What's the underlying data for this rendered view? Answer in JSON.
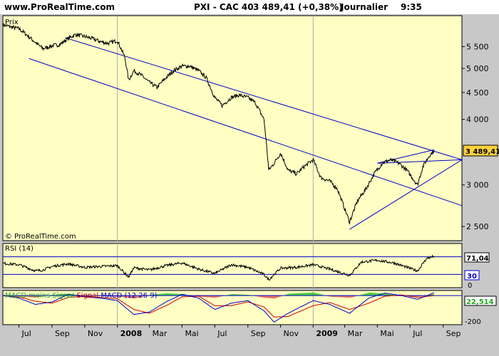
{
  "header": {
    "site": "www.ProRealTime.com",
    "instrument": "PXI - CAC 40",
    "last_quote": "3 489,41 (+0,38%)",
    "period": "Journalier",
    "time": "9:35"
  },
  "colors": {
    "panel_bg": "#ffffc4",
    "frame_bg": "#c8c8c8",
    "price_line": "#000000",
    "channel_line": "#0000cc",
    "rsi_line": "#000000",
    "macd_line": "#0000cc",
    "signal_line": "#cc0000",
    "histogram_positive": "#22bb22",
    "histogram_negative": "#dd5555",
    "price_label_bg": "#ffd23c"
  },
  "chart_data": [
    {
      "type": "line",
      "title": "PXI - CAC 40",
      "panel_label": "Prix",
      "watermark": "© ProRealTime.com",
      "scale": "log",
      "ylim": [
        2350,
        6300
      ],
      "y_ticks": [
        2500,
        3000,
        4000,
        4500,
        5000,
        5500
      ],
      "y_tick_labels": [
        "2 500",
        "3 000",
        "4 000",
        "4 500",
        "5 000",
        "5 500"
      ],
      "last_price_label": "3 489,41",
      "x_tick_labels": [
        "Jul",
        "Sep",
        "Nov",
        "2008",
        "Mar",
        "Mai",
        "Jul",
        "Sep",
        "Nov",
        "2009",
        "Mar",
        "Mai",
        "Jul",
        "Sep"
      ],
      "x_ticks": [
        "2007-07",
        "2007-09",
        "2007-11",
        "2008-01",
        "2008-03",
        "2008-05",
        "2008-07",
        "2008-09",
        "2008-11",
        "2009-01",
        "2009-03",
        "2009-05",
        "2009-07",
        "2009-09"
      ],
      "x_range": [
        "2007-06-01",
        "2009-10-06"
      ],
      "series": [
        {
          "points": [
            [
              "2007-06-01",
              6050
            ],
            [
              "2007-06-15",
              6000
            ],
            [
              "2007-07-01",
              5950
            ],
            [
              "2007-07-15",
              5800
            ],
            [
              "2007-08-01",
              5600
            ],
            [
              "2007-08-15",
              5450
            ],
            [
              "2007-09-01",
              5520
            ],
            [
              "2007-09-15",
              5550
            ],
            [
              "2007-10-01",
              5700
            ],
            [
              "2007-10-15",
              5800
            ],
            [
              "2007-11-01",
              5750
            ],
            [
              "2007-11-15",
              5700
            ],
            [
              "2007-12-01",
              5620
            ],
            [
              "2007-12-15",
              5580
            ],
            [
              "2008-01-01",
              5650
            ],
            [
              "2008-01-15",
              5250
            ],
            [
              "2008-01-22",
              4750
            ],
            [
              "2008-02-01",
              4950
            ],
            [
              "2008-02-15",
              4850
            ],
            [
              "2008-03-01",
              4700
            ],
            [
              "2008-03-15",
              4600
            ],
            [
              "2008-04-01",
              4800
            ],
            [
              "2008-04-15",
              4950
            ],
            [
              "2008-05-01",
              5050
            ],
            [
              "2008-05-15",
              5050
            ],
            [
              "2008-06-01",
              4950
            ],
            [
              "2008-06-15",
              4800
            ],
            [
              "2008-07-01",
              4400
            ],
            [
              "2008-07-15",
              4250
            ],
            [
              "2008-08-01",
              4400
            ],
            [
              "2008-08-15",
              4450
            ],
            [
              "2008-09-01",
              4400
            ],
            [
              "2008-09-15",
              4300
            ],
            [
              "2008-10-01",
              4000
            ],
            [
              "2008-10-10",
              3200
            ],
            [
              "2008-10-20",
              3300
            ],
            [
              "2008-11-01",
              3450
            ],
            [
              "2008-11-15",
              3200
            ],
            [
              "2008-12-01",
              3150
            ],
            [
              "2008-12-15",
              3250
            ],
            [
              "2009-01-01",
              3350
            ],
            [
              "2009-01-15",
              3100
            ],
            [
              "2009-02-01",
              3050
            ],
            [
              "2009-02-15",
              2950
            ],
            [
              "2009-03-01",
              2700
            ],
            [
              "2009-03-10",
              2550
            ],
            [
              "2009-03-25",
              2800
            ],
            [
              "2009-04-10",
              2950
            ],
            [
              "2009-04-25",
              3150
            ],
            [
              "2009-05-10",
              3300
            ],
            [
              "2009-05-25",
              3350
            ],
            [
              "2009-06-10",
              3300
            ],
            [
              "2009-06-25",
              3200
            ],
            [
              "2009-07-10",
              3050
            ],
            [
              "2009-07-15",
              3000
            ],
            [
              "2009-07-25",
              3250
            ],
            [
              "2009-08-05",
              3400
            ],
            [
              "2009-08-15",
              3489.41
            ]
          ]
        }
      ],
      "trendlines": [
        {
          "name": "channel-top",
          "from": [
            "2007-09-25",
            5720
          ],
          "to": [
            "2009-10-06",
            3350
          ]
        },
        {
          "name": "channel-bottom",
          "from": [
            "2007-07-20",
            5220
          ],
          "to": [
            "2009-10-06",
            2740
          ]
        },
        {
          "name": "wedge-upper",
          "from": [
            "2009-05-01",
            3300
          ],
          "to": [
            "2009-10-06",
            3350
          ]
        },
        {
          "name": "wedge-lower",
          "from": [
            "2009-03-10",
            2470
          ],
          "to": [
            "2009-10-06",
            3350
          ]
        },
        {
          "name": "wedge-top-line",
          "from": [
            "2009-05-01",
            3300
          ],
          "to": [
            "2009-08-15",
            3500
          ]
        }
      ]
    },
    {
      "type": "line",
      "title": "RSI (14)",
      "ylim": [
        0,
        100
      ],
      "levels": [
        70,
        30
      ],
      "y_tick_labels": [
        "0"
      ],
      "last_value_label": "71,04",
      "level_label": "30",
      "x_range": [
        "2007-06-01",
        "2009-10-06"
      ],
      "series": [
        {
          "points": [
            [
              "2007-06-01",
              55
            ],
            [
              "2007-07-01",
              52
            ],
            [
              "2007-08-01",
              38
            ],
            [
              "2007-08-15",
              40
            ],
            [
              "2007-09-01",
              48
            ],
            [
              "2007-10-01",
              54
            ],
            [
              "2007-11-01",
              46
            ],
            [
              "2007-12-01",
              48
            ],
            [
              "2008-01-01",
              50
            ],
            [
              "2008-01-22",
              24
            ],
            [
              "2008-02-01",
              45
            ],
            [
              "2008-03-01",
              40
            ],
            [
              "2008-04-01",
              50
            ],
            [
              "2008-05-01",
              56
            ],
            [
              "2008-06-01",
              42
            ],
            [
              "2008-07-01",
              32
            ],
            [
              "2008-08-01",
              52
            ],
            [
              "2008-09-01",
              46
            ],
            [
              "2008-10-01",
              30
            ],
            [
              "2008-10-10",
              18
            ],
            [
              "2008-11-01",
              44
            ],
            [
              "2008-12-01",
              46
            ],
            [
              "2009-01-01",
              52
            ],
            [
              "2009-02-01",
              42
            ],
            [
              "2009-03-10",
              28
            ],
            [
              "2009-04-01",
              58
            ],
            [
              "2009-05-01",
              62
            ],
            [
              "2009-06-01",
              56
            ],
            [
              "2009-07-15",
              38
            ],
            [
              "2009-08-01",
              66
            ],
            [
              "2009-08-15",
              71.04
            ]
          ]
        }
      ]
    },
    {
      "type": "line",
      "title": "MACD moins Signal",
      "series_labels": [
        "MACD moins Signal",
        "Signal",
        "MACD (12 26 9)"
      ],
      "ylim": [
        -230,
        40
      ],
      "y_tick_labels": [
        "-200"
      ],
      "zero_line": 0,
      "last_value_label": "22,514",
      "x_range": [
        "2007-06-01",
        "2009-10-06"
      ],
      "series": [
        {
          "points": [
            [
              "2007-06-01",
              0
            ],
            [
              "2007-07-01",
              -20
            ],
            [
              "2007-08-01",
              -70
            ],
            [
              "2007-09-01",
              -50
            ],
            [
              "2007-10-01",
              10
            ],
            [
              "2007-11-01",
              -10
            ],
            [
              "2007-12-01",
              -20
            ],
            [
              "2008-01-01",
              -40
            ],
            [
              "2008-02-01",
              -150
            ],
            [
              "2008-03-01",
              -130
            ],
            [
              "2008-04-01",
              -50
            ],
            [
              "2008-05-01",
              10
            ],
            [
              "2008-06-01",
              -20
            ],
            [
              "2008-07-01",
              -110
            ],
            [
              "2008-08-01",
              -60
            ],
            [
              "2008-09-01",
              -40
            ],
            [
              "2008-10-01",
              -120
            ],
            [
              "2008-10-20",
              -210
            ],
            [
              "2008-11-15",
              -140
            ],
            [
              "2009-01-01",
              -40
            ],
            [
              "2009-02-01",
              -70
            ],
            [
              "2009-03-10",
              -140
            ],
            [
              "2009-04-15",
              -20
            ],
            [
              "2009-05-15",
              20
            ],
            [
              "2009-06-15",
              0
            ],
            [
              "2009-07-15",
              -30
            ],
            [
              "2009-08-15",
              22.5
            ]
          ]
        },
        {
          "points": [
            [
              "2007-06-01",
              0
            ],
            [
              "2007-07-01",
              -10
            ],
            [
              "2007-08-01",
              -45
            ],
            [
              "2007-09-01",
              -60
            ],
            [
              "2007-10-01",
              -15
            ],
            [
              "2007-11-01",
              -5
            ],
            [
              "2007-12-01",
              -15
            ],
            [
              "2008-01-01",
              -25
            ],
            [
              "2008-02-01",
              -110
            ],
            [
              "2008-03-01",
              -140
            ],
            [
              "2008-04-01",
              -80
            ],
            [
              "2008-05-01",
              -10
            ],
            [
              "2008-06-01",
              -5
            ],
            [
              "2008-07-01",
              -80
            ],
            [
              "2008-08-01",
              -80
            ],
            [
              "2008-09-01",
              -50
            ],
            [
              "2008-10-01",
              -90
            ],
            [
              "2008-10-20",
              -170
            ],
            [
              "2008-11-15",
              -165
            ],
            [
              "2009-01-01",
              -80
            ],
            [
              "2009-02-01",
              -55
            ],
            [
              "2009-03-10",
              -110
            ],
            [
              "2009-04-15",
              -60
            ],
            [
              "2009-05-15",
              -5
            ],
            [
              "2009-06-15",
              5
            ],
            [
              "2009-07-15",
              -15
            ],
            [
              "2009-08-15",
              0
            ]
          ]
        }
      ]
    }
  ]
}
